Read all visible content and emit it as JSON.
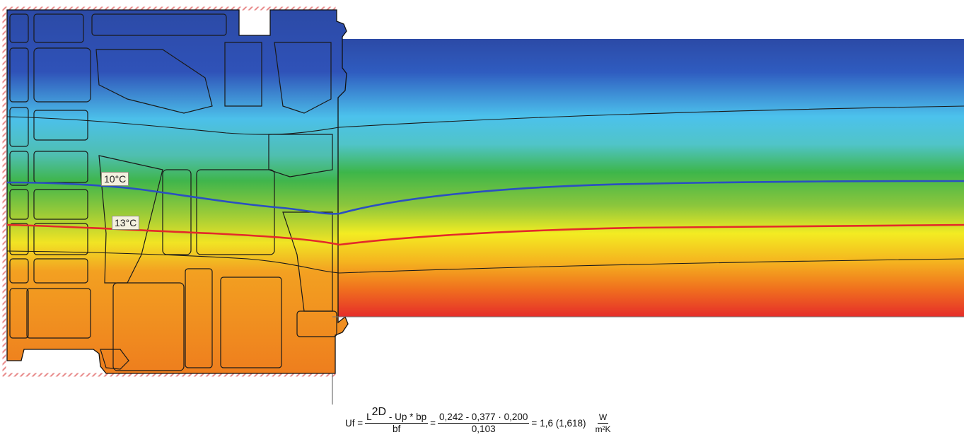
{
  "isotherm_labels": {
    "t10": "10°C",
    "t13": "13°C"
  },
  "isotherm_colors": {
    "t10": "#2a4fc2",
    "t13": "#e32a2a"
  },
  "formula": {
    "lhs": "Uf =",
    "frac1_num_l": "L",
    "frac1_num_sup": "2D",
    "frac1_num_rest": " - Up * bp",
    "frac1_den": "bf",
    "eq1": "=",
    "frac2_num": "0,242 - 0,377 · 0,200",
    "frac2_den": "0,103",
    "eq2": "=",
    "result": "1,6 (1,618)",
    "unit_num": "W",
    "unit_den": "m²K"
  },
  "temperature_scale_colors": [
    "#2c4aa6",
    "#4ec3ea",
    "#3bb64a",
    "#f3ec22",
    "#f1901f",
    "#e5302a"
  ]
}
